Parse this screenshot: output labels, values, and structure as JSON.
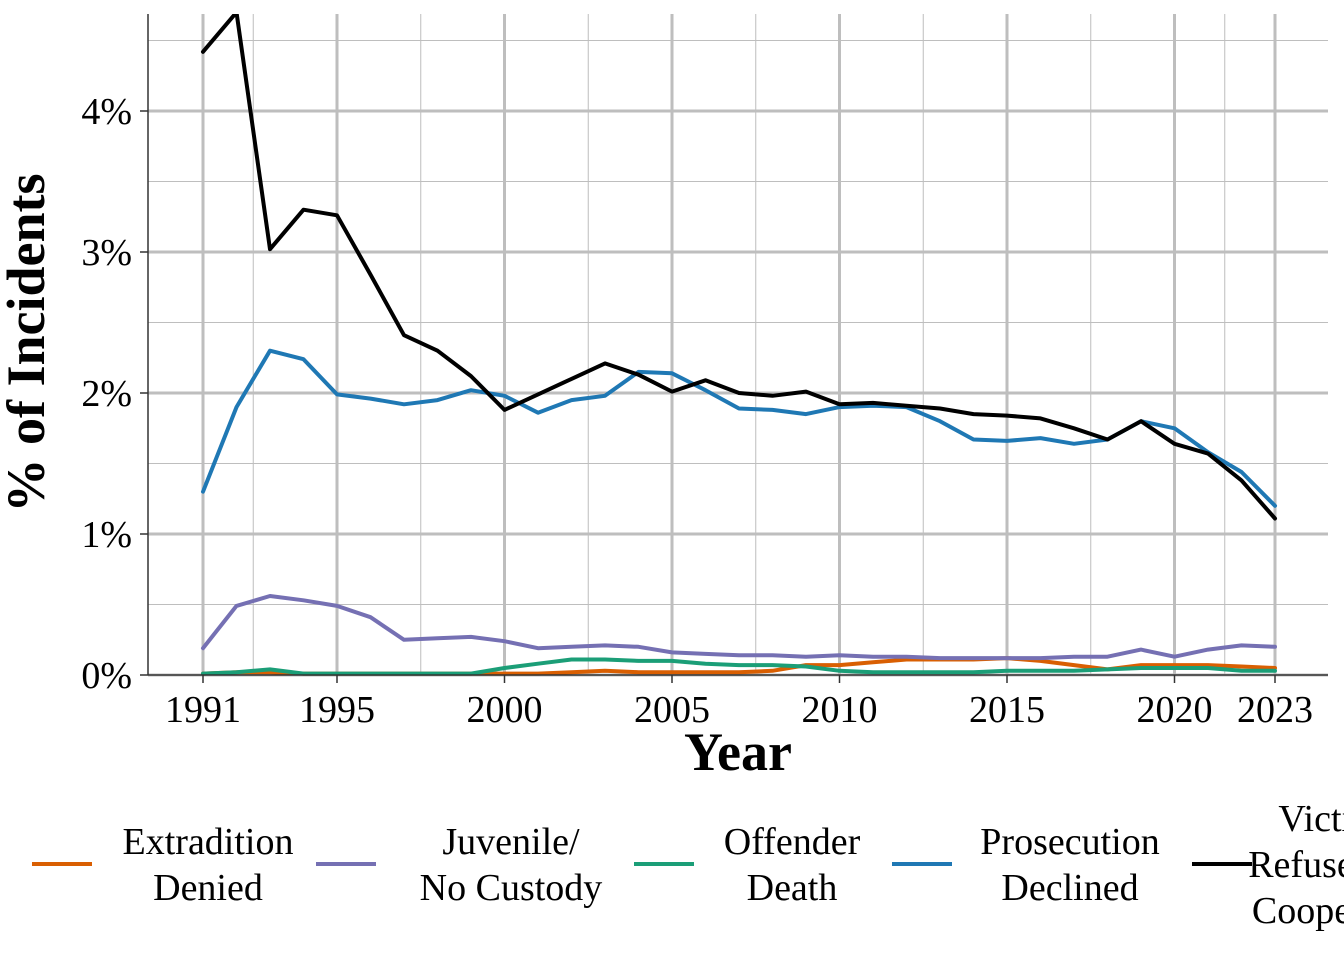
{
  "chart_data": {
    "type": "line",
    "xlabel": "Year",
    "ylabel": "% of Incidents",
    "xlim": [
      1989.3,
      2024.7
    ],
    "ylim": [
      0,
      4.7
    ],
    "x_ticks": [
      1991,
      1995,
      2000,
      2005,
      2010,
      2015,
      2020,
      2023
    ],
    "x_tick_labels": [
      "1991",
      "1995",
      "2000",
      "2005",
      "2010",
      "2015",
      "2020",
      "2023"
    ],
    "x_minor_grid": [
      1992.5,
      1997.5,
      2002.5,
      2007.5,
      2012.5,
      2017.5,
      2021.5
    ],
    "y_ticks": [
      0,
      1,
      2,
      3,
      4
    ],
    "y_tick_labels": [
      "0%",
      "1%",
      "2%",
      "3%",
      "4%"
    ],
    "y_minor_grid": [
      0.5,
      1.5,
      2.5,
      3.5,
      4.5
    ],
    "grid": true,
    "grid_color": "#bebebe",
    "legend_position": "bottom",
    "x": [
      1991,
      1992,
      1993,
      1994,
      1995,
      1996,
      1997,
      1998,
      1999,
      2000,
      2001,
      2002,
      2003,
      2004,
      2005,
      2006,
      2007,
      2008,
      2009,
      2010,
      2011,
      2012,
      2013,
      2014,
      2015,
      2016,
      2017,
      2018,
      2019,
      2020,
      2021,
      2022,
      2023
    ],
    "series": [
      {
        "name": "Extradition Denied",
        "legend_lines": [
          "Extradition",
          "Denied"
        ],
        "color": "#d95f02",
        "values": [
          0.01,
          0.02,
          0.02,
          0.01,
          0.01,
          0.01,
          0.01,
          0.01,
          0.01,
          0.01,
          0.01,
          0.02,
          0.03,
          0.02,
          0.02,
          0.02,
          0.02,
          0.03,
          0.07,
          0.07,
          0.09,
          0.11,
          0.11,
          0.11,
          0.12,
          0.1,
          0.07,
          0.04,
          0.07,
          0.07,
          0.07,
          0.06,
          0.05
        ]
      },
      {
        "name": "Juvenile/ No Custody",
        "legend_lines": [
          "Juvenile/",
          "No Custody"
        ],
        "color": "#7570b3",
        "values": [
          0.19,
          0.49,
          0.56,
          0.53,
          0.49,
          0.41,
          0.25,
          0.26,
          0.27,
          0.24,
          0.19,
          0.2,
          0.21,
          0.2,
          0.16,
          0.15,
          0.14,
          0.14,
          0.13,
          0.14,
          0.13,
          0.13,
          0.12,
          0.12,
          0.12,
          0.12,
          0.13,
          0.13,
          0.18,
          0.13,
          0.18,
          0.21,
          0.2
        ]
      },
      {
        "name": "Offender Death",
        "legend_lines": [
          "Offender",
          "Death"
        ],
        "color": "#1b9e77",
        "values": [
          0.01,
          0.02,
          0.04,
          0.01,
          0.01,
          0.01,
          0.01,
          0.01,
          0.01,
          0.05,
          0.08,
          0.11,
          0.11,
          0.1,
          0.1,
          0.08,
          0.07,
          0.07,
          0.06,
          0.03,
          0.02,
          0.02,
          0.02,
          0.02,
          0.03,
          0.03,
          0.03,
          0.04,
          0.05,
          0.05,
          0.05,
          0.03,
          0.03
        ]
      },
      {
        "name": "Prosecution Declined",
        "legend_lines": [
          "Prosecution",
          "Declined"
        ],
        "color": "#1f78b4",
        "values": [
          1.3,
          1.9,
          2.3,
          2.24,
          1.99,
          1.96,
          1.92,
          1.95,
          2.02,
          1.98,
          1.86,
          1.95,
          1.98,
          2.15,
          2.14,
          2.02,
          1.89,
          1.88,
          1.85,
          1.9,
          1.91,
          1.9,
          1.8,
          1.67,
          1.66,
          1.68,
          1.64,
          1.67,
          1.8,
          1.75,
          1.58,
          1.44,
          1.2
        ]
      },
      {
        "name": "Victim Refused to Cooperate",
        "legend_lines": [
          "Victim",
          "Refused to",
          "Cooperate"
        ],
        "color": "#000000",
        "values": [
          4.42,
          4.7,
          3.02,
          3.3,
          3.26,
          2.84,
          2.41,
          2.3,
          2.12,
          1.88,
          1.99,
          2.1,
          2.21,
          2.13,
          2.01,
          2.09,
          2.0,
          1.98,
          2.01,
          1.92,
          1.93,
          1.91,
          1.89,
          1.85,
          1.84,
          1.82,
          1.75,
          1.67,
          1.8,
          1.64,
          1.57,
          1.38,
          1.11
        ]
      }
    ]
  }
}
